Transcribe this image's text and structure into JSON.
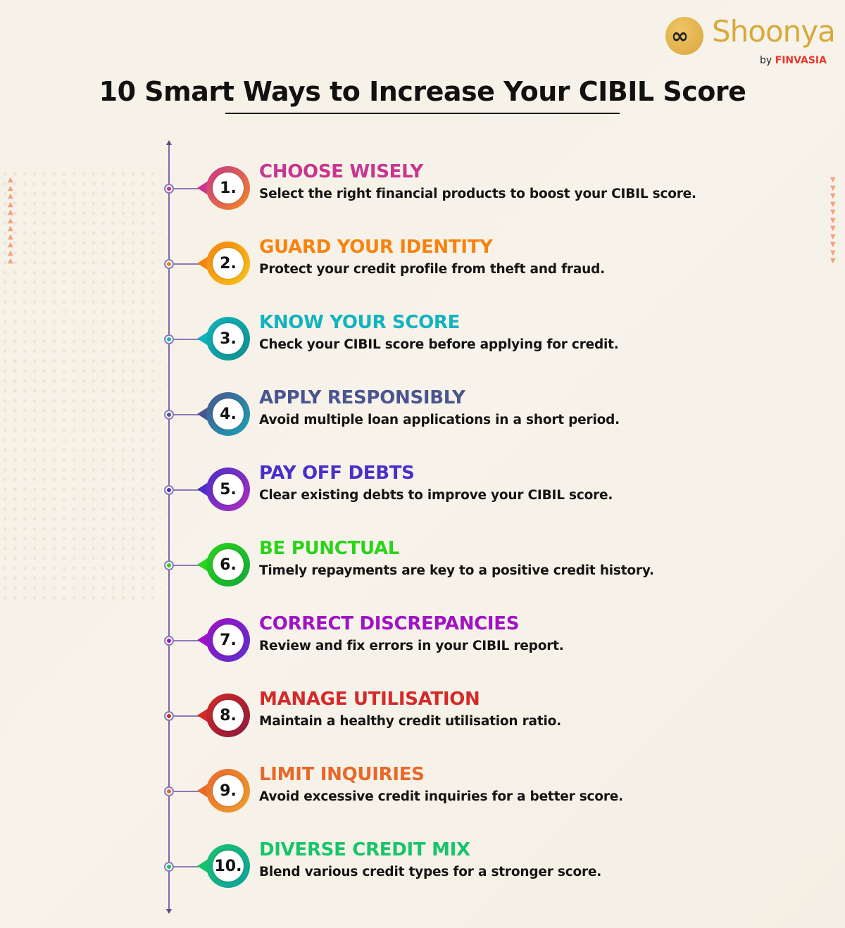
{
  "brand": {
    "logo_text": "Shoonya",
    "by": "by",
    "parent": "FINVASIA"
  },
  "title": "10 Smart Ways to Increase Your CIBIL Score",
  "items": [
    {
      "number": "1.",
      "heading": "CHOOSE WISELY",
      "description": "Select the right financial products to boost your CIBIL score.",
      "color": "#c8358e",
      "color2": "#f58a1f"
    },
    {
      "number": "2.",
      "heading": "GUARD YOUR IDENTITY",
      "description": "Protect your credit profile from theft and fraud.",
      "color": "#f7830f",
      "color2": "#f5c51a"
    },
    {
      "number": "3.",
      "heading": "KNOW YOUR SCORE",
      "description": "Check your CIBIL score before applying for credit.",
      "color": "#12b3bf",
      "color2": "#0e8f8a"
    },
    {
      "number": "4.",
      "heading": "APPLY RESPONSIBLY",
      "description": "Avoid multiple loan applications in a short period.",
      "color": "#4a5590",
      "color2": "#1aa3b5"
    },
    {
      "number": "5.",
      "heading": "PAY OFF DEBTS",
      "description": "Clear existing debts to improve your CIBIL score.",
      "color": "#4a2fc9",
      "color2": "#b02fc0"
    },
    {
      "number": "6.",
      "heading": "BE PUNCTUAL",
      "description": "Timely repayments are key to a positive credit history.",
      "color": "#2bd31b",
      "color2": "#13a83a"
    },
    {
      "number": "7.",
      "heading": "CORRECT DISCREPANCIES",
      "description": "Review and fix errors in your CIBIL report.",
      "color": "#a012c4",
      "color2": "#5a2fd0"
    },
    {
      "number": "8.",
      "heading": "MANAGE UTILISATION",
      "description": "Maintain a healthy credit utilisation ratio.",
      "color": "#d42a2a",
      "color2": "#8a1a3a"
    },
    {
      "number": "9.",
      "heading": "LIMIT INQUIRIES",
      "description": "Avoid excessive credit inquiries for a better score.",
      "color": "#e8682a",
      "color2": "#f0a030"
    },
    {
      "number": "10.",
      "heading": "DIVERSE CREDIT MIX",
      "description": "Blend various credit types for a stronger score.",
      "color": "#18c46a",
      "color2": "#0fa0a0"
    }
  ]
}
